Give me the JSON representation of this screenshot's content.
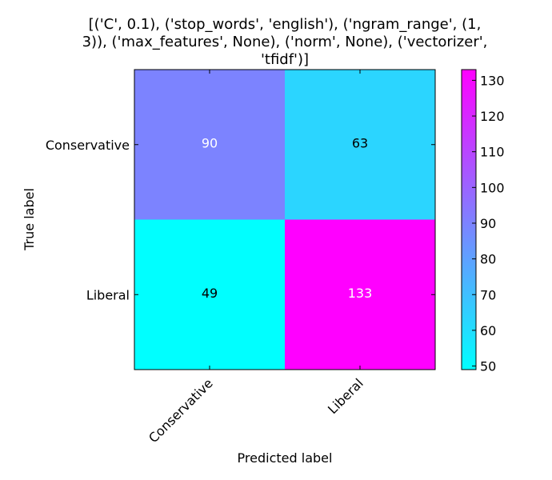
{
  "chart_data": {
    "type": "heatmap",
    "title_lines": [
      "[('C', 0.1), ('stop_words', 'english'), ('ngram_range', (1,",
      "3)), ('max_features', None), ('norm', None), ('vectorizer',",
      "'tfidf')]"
    ],
    "xlabel": "Predicted label",
    "ylabel": "True label",
    "x_categories": [
      "Conservative",
      "Liberal"
    ],
    "y_categories": [
      "Conservative",
      "Liberal"
    ],
    "matrix": [
      [
        90,
        63
      ],
      [
        49,
        133
      ]
    ],
    "cell_text_colors": [
      [
        "#ffffff",
        "#000000"
      ],
      [
        "#000000",
        "#ffffff"
      ]
    ],
    "colormap": "cool",
    "colormap_colors": {
      "low": "#00ffff",
      "high": "#ff00ff"
    },
    "colorbar": {
      "min": 49,
      "max": 133,
      "ticks": [
        50,
        60,
        70,
        80,
        90,
        100,
        110,
        120,
        130
      ]
    },
    "grid": false
  }
}
